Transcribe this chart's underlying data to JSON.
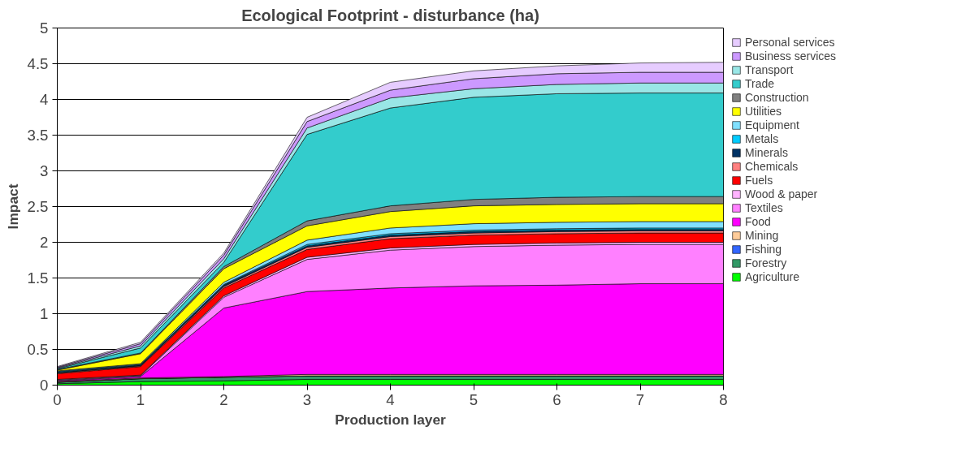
{
  "chart_data": {
    "type": "area",
    "stacked": true,
    "title": "Ecological Footprint - disturbance (ha)",
    "xlabel": "Production layer",
    "ylabel": "Impact",
    "x": [
      0,
      1,
      2,
      3,
      4,
      5,
      6,
      7,
      8
    ],
    "xlim": [
      0,
      8
    ],
    "xticks": [
      0,
      1,
      2,
      3,
      4,
      5,
      6,
      7,
      8
    ],
    "ylim": [
      0,
      5
    ],
    "yticks": [
      0,
      0.5,
      1,
      1.5,
      2,
      2.5,
      3,
      3.5,
      4,
      4.5,
      5
    ],
    "grid": "y",
    "legend": "right",
    "series": [
      {
        "name": "Agriculture",
        "color": "#00ff00",
        "values": [
          0.02,
          0.05,
          0.06,
          0.08,
          0.08,
          0.08,
          0.08,
          0.08,
          0.08
        ]
      },
      {
        "name": "Forestry",
        "color": "#339966",
        "values": [
          0.02,
          0.04,
          0.05,
          0.05,
          0.05,
          0.05,
          0.05,
          0.05,
          0.05
        ]
      },
      {
        "name": "Fishing",
        "color": "#3366ff",
        "values": [
          null,
          null,
          null,
          null,
          null,
          null,
          null,
          null,
          null
        ]
      },
      {
        "name": "Mining",
        "color": "#ffcc99",
        "values": [
          0.01,
          0.01,
          0.01,
          0.02,
          0.02,
          0.02,
          0.02,
          0.02,
          0.02
        ]
      },
      {
        "name": "Food",
        "color": "#ff00ff",
        "values": [
          0.01,
          0.02,
          0.96,
          1.16,
          1.21,
          1.24,
          1.25,
          1.27,
          1.27
        ]
      },
      {
        "name": "Textiles",
        "color": "#ff80ff",
        "values": [
          0.01,
          0.01,
          0.15,
          0.45,
          0.53,
          0.55,
          0.56,
          0.55,
          0.55
        ]
      },
      {
        "name": "Wood & paper",
        "color": "#ffb3ff",
        "values": [
          0.01,
          0.01,
          0.02,
          0.03,
          0.03,
          0.03,
          0.03,
          0.03,
          0.03
        ]
      },
      {
        "name": "Fuels",
        "color": "#ff0000",
        "values": [
          0.08,
          0.12,
          0.11,
          0.11,
          0.13,
          0.13,
          0.13,
          0.13,
          0.13
        ]
      },
      {
        "name": "Chemicals",
        "color": "#ff8080",
        "values": [
          0.01,
          0.01,
          0.02,
          0.03,
          0.03,
          0.03,
          0.03,
          0.03,
          0.03
        ]
      },
      {
        "name": "Minerals",
        "color": "#003366",
        "values": [
          0.01,
          0.01,
          0.02,
          0.02,
          0.02,
          0.02,
          0.02,
          0.02,
          0.02
        ]
      },
      {
        "name": "Metals",
        "color": "#00ccff",
        "values": [
          0.01,
          0.01,
          0.01,
          0.02,
          0.02,
          0.02,
          0.02,
          0.02,
          0.02
        ]
      },
      {
        "name": "Equipment",
        "color": "#80e0ff",
        "values": [
          0.01,
          0.01,
          0.03,
          0.06,
          0.08,
          0.09,
          0.09,
          0.09,
          0.09
        ]
      },
      {
        "name": "Utilities",
        "color": "#ffff00",
        "values": [
          0.01,
          0.14,
          0.19,
          0.2,
          0.23,
          0.25,
          0.25,
          0.25,
          0.25
        ]
      },
      {
        "name": "Construction",
        "color": "#808080",
        "values": [
          0.01,
          0.01,
          0.03,
          0.07,
          0.08,
          0.09,
          0.1,
          0.1,
          0.1
        ]
      },
      {
        "name": "Trade",
        "color": "#33cccc",
        "values": [
          0.01,
          0.07,
          0.06,
          1.21,
          1.37,
          1.43,
          1.45,
          1.45,
          1.45
        ]
      },
      {
        "name": "Transport",
        "color": "#99e6e6",
        "values": [
          0.01,
          0.03,
          0.05,
          0.09,
          0.14,
          0.12,
          0.13,
          0.14,
          0.14
        ]
      },
      {
        "name": "Business services",
        "color": "#cc99ff",
        "values": [
          0.01,
          0.03,
          0.05,
          0.09,
          0.11,
          0.14,
          0.15,
          0.15,
          0.15
        ]
      },
      {
        "name": "Personal services",
        "color": "#e6ccff",
        "values": [
          0.01,
          0.02,
          0.03,
          0.06,
          0.11,
          0.11,
          0.11,
          0.13,
          0.14
        ]
      }
    ]
  }
}
